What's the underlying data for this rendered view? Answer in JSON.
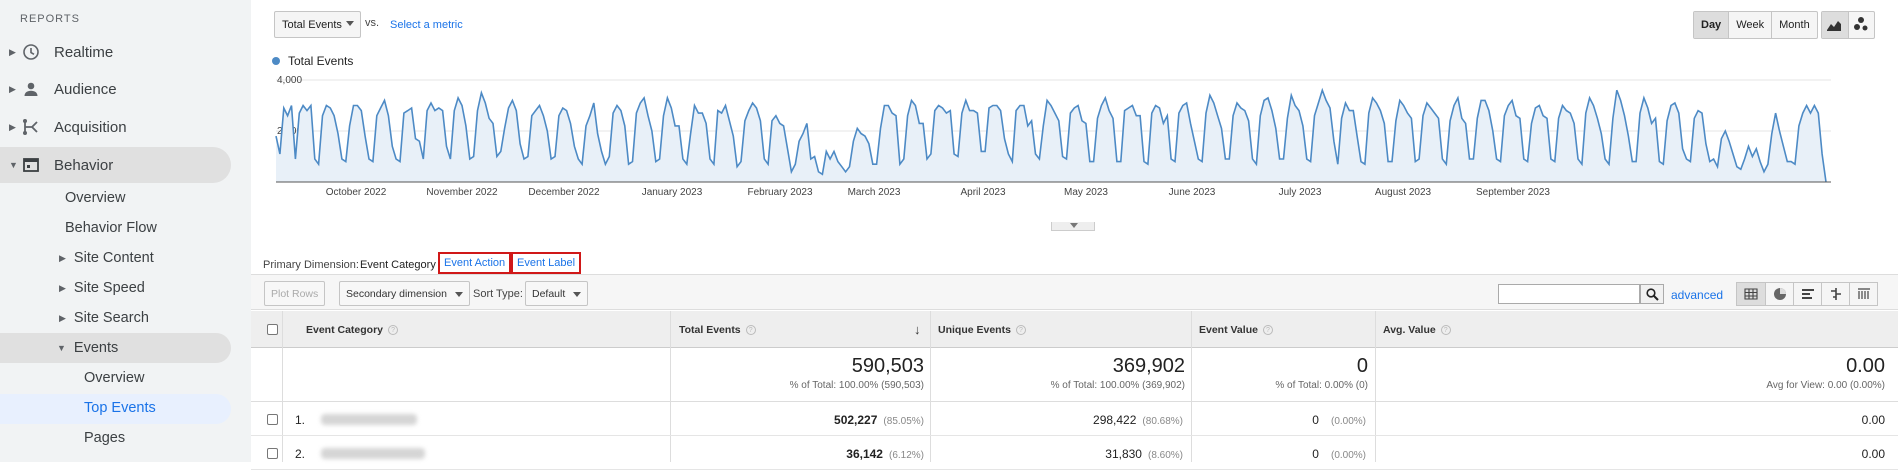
{
  "sidebar": {
    "heading": "REPORTS",
    "top_items": [
      {
        "label": "Realtime"
      },
      {
        "label": "Audience"
      },
      {
        "label": "Acquisition"
      },
      {
        "label": "Behavior"
      }
    ],
    "behavior_items": {
      "overview": "Overview",
      "behavior_flow": "Behavior Flow",
      "site_content": "Site Content",
      "site_speed": "Site Speed",
      "site_search": "Site Search",
      "events": "Events",
      "events_overview": "Overview",
      "top_events": "Top Events",
      "pages": "Pages"
    }
  },
  "controls": {
    "metric": "Total Events",
    "vs": "vs.",
    "select_metric": "Select a metric",
    "periods": [
      "Day",
      "Week",
      "Month"
    ],
    "active_period": "Day"
  },
  "chart_data": {
    "type": "line",
    "series": [
      {
        "name": "Total Events",
        "color": "#4d8ac5"
      }
    ],
    "y_ticks": [
      "4,000",
      "2,000"
    ],
    "ylim": [
      0,
      4000
    ],
    "x_labels": [
      "October 2022",
      "November 2022",
      "December 2022",
      "January 2023",
      "February 2023",
      "March 2023",
      "April 2023",
      "May 2023",
      "June 2023",
      "July 2023",
      "August 2023",
      "September 2023"
    ],
    "values": [
      1800,
      1100,
      2900,
      2600,
      3000,
      900,
      2700,
      3000,
      2800,
      3000,
      900,
      700,
      2600,
      3000,
      2900,
      2600,
      1900,
      900,
      800,
      2200,
      3000,
      3000,
      2800,
      1800,
      900,
      800,
      2600,
      2900,
      3200,
      2600,
      1400,
      900,
      800,
      2700,
      2800,
      2900,
      1700,
      1600,
      900,
      2800,
      3100,
      2800,
      2900,
      2800,
      1400,
      900,
      2800,
      3300,
      3000,
      2200,
      900,
      1000,
      2800,
      3500,
      3100,
      2500,
      2300,
      1000,
      1200,
      2100,
      2900,
      3200,
      2800,
      1500,
      900,
      1000,
      2600,
      2800,
      3000,
      2600,
      2000,
      900,
      1000,
      2600,
      2900,
      2800,
      2300,
      1400,
      900,
      700,
      2200,
      2600,
      3100,
      1900,
      1200,
      700,
      1000,
      2700,
      3000,
      2800,
      2200,
      700,
      800,
      2700,
      3100,
      3300,
      2600,
      2000,
      800,
      900,
      2600,
      3300,
      2900,
      2200,
      2200,
      900,
      700,
      1900,
      3000,
      2700,
      2700,
      2300,
      900,
      700,
      2800,
      2700,
      3000,
      2400,
      1800,
      600,
      800,
      2400,
      2800,
      3100,
      2900,
      2400,
      900,
      700,
      2400,
      2600,
      2300,
      2200,
      1300,
      400,
      700,
      1600,
      1900,
      2300,
      900,
      1000,
      400,
      300,
      1200,
      900,
      1200,
      800,
      600,
      400,
      600,
      1600,
      2100,
      1900,
      1800,
      1500,
      700,
      700,
      2100,
      3000,
      3000,
      2700,
      2600,
      700,
      900,
      2600,
      3200,
      3000,
      2300,
      2300,
      900,
      1100,
      2800,
      3000,
      2900,
      2700,
      2800,
      1100,
      1000,
      2700,
      3200,
      2800,
      2800,
      2700,
      1200,
      1200,
      2900,
      3000,
      3000,
      2800,
      1700,
      1100,
      800,
      2800,
      3000,
      3000,
      2200,
      2400,
      1100,
      900,
      2200,
      3200,
      3000,
      2700,
      2400,
      1000,
      900,
      2700,
      2900,
      3000,
      2400,
      2300,
      800,
      800,
      2500,
      3000,
      3300,
      2800,
      2500,
      800,
      800,
      2800,
      2900,
      3000,
      2600,
      2600,
      800,
      700,
      2700,
      3000,
      2900,
      2300,
      2600,
      900,
      800,
      2700,
      3000,
      3100,
      2300,
      1600,
      900,
      800,
      2700,
      3400,
      3100,
      2600,
      2100,
      900,
      900,
      2600,
      3100,
      2900,
      2800,
      2400,
      900,
      700,
      2600,
      3200,
      3300,
      2800,
      2100,
      900,
      900,
      2500,
      3400,
      3000,
      2800,
      2200,
      900,
      800,
      2600,
      3100,
      3600,
      3200,
      2900,
      1600,
      700,
      2500,
      3100,
      2800,
      2800,
      1800,
      800,
      700,
      2700,
      3300,
      3100,
      2800,
      2300,
      800,
      800,
      2400,
      3200,
      3000,
      2700,
      2500,
      800,
      900,
      2600,
      3100,
      2900,
      2700,
      2500,
      900,
      700,
      2400,
      3000,
      3300,
      2500,
      2300,
      900,
      900,
      2500,
      3200,
      3200,
      2800,
      2000,
      900,
      800,
      2600,
      3000,
      3200,
      2600,
      2500,
      900,
      800,
      2300,
      2900,
      3000,
      2600,
      2500,
      900,
      800,
      2500,
      3000,
      2800,
      2700,
      2300,
      900,
      700,
      2700,
      3300,
      3000,
      2500,
      1900,
      900,
      700,
      2500,
      3600,
      3200,
      2600,
      1800,
      800,
      800,
      2700,
      3300,
      2900,
      2300,
      2500,
      800,
      700,
      2400,
      3000,
      3100,
      2700,
      1300,
      900,
      800,
      2500,
      2800,
      2700,
      1500,
      800,
      900,
      600,
      1700,
      2000,
      1600,
      1100,
      600,
      500,
      900,
      1400,
      1000,
      1300,
      800,
      400,
      700,
      1900,
      2700,
      2000,
      1400,
      800,
      800,
      700,
      2200,
      2700,
      3000,
      2700,
      3000,
      2700,
      1100,
      0
    ]
  },
  "primary_dimension": {
    "label": "Primary Dimension:",
    "current": "Event Category",
    "options": [
      "Event Action",
      "Event Label"
    ]
  },
  "toolbar": {
    "plot_rows": "Plot Rows",
    "secondary_dimension": "Secondary dimension",
    "sort_type_label": "Sort Type:",
    "sort_type": "Default",
    "advanced": "advanced"
  },
  "table": {
    "columns": [
      "Event Category",
      "Total Events",
      "Unique Events",
      "Event Value",
      "Avg. Value"
    ],
    "help_glyph": "?",
    "sort_arrow": "↓",
    "totals": {
      "total_events": "590,503",
      "total_events_sub": "% of Total: 100.00% (590,503)",
      "unique_events": "369,902",
      "unique_events_sub": "% of Total: 100.00% (369,902)",
      "event_value": "0",
      "event_value_sub": "% of Total: 0.00% (0)",
      "avg_value": "0.00",
      "avg_value_sub": "Avg for View: 0.00 (0.00%)"
    },
    "rows": [
      {
        "num": "1.",
        "total": "502,227",
        "total_pct": "(85.05%)",
        "unique": "298,422",
        "unique_pct": "(80.68%)",
        "value": "0",
        "value_pct": "(0.00%)",
        "avg": "0.00"
      },
      {
        "num": "2.",
        "total": "36,142",
        "total_pct": "(6.12%)",
        "unique": "31,830",
        "unique_pct": "(8.60%)",
        "value": "0",
        "value_pct": "(0.00%)",
        "avg": "0.00"
      }
    ]
  }
}
